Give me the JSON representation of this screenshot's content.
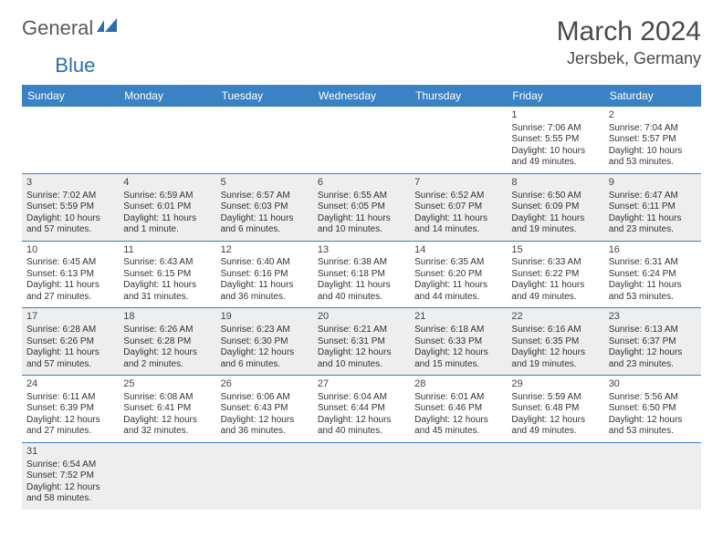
{
  "logo": {
    "word1": "General",
    "word2": "Blue",
    "word1_color": "#5a5a5a",
    "word2_color": "#2d6fb0",
    "icon_color": "#2d6fb0"
  },
  "title": "March 2024",
  "location": "Jersbek, Germany",
  "header_bg": "#3a82c4",
  "header_fg": "#ffffff",
  "row_alt_bg": "#eeeeee",
  "row_bg": "#ffffff",
  "border_color": "#3a82c4",
  "text_color": "#333333",
  "day_headers": [
    "Sunday",
    "Monday",
    "Tuesday",
    "Wednesday",
    "Thursday",
    "Friday",
    "Saturday"
  ],
  "weeks": [
    [
      null,
      null,
      null,
      null,
      null,
      {
        "n": "1",
        "sr": "Sunrise: 7:06 AM",
        "ss": "Sunset: 5:55 PM",
        "dl1": "Daylight: 10 hours",
        "dl2": "and 49 minutes."
      },
      {
        "n": "2",
        "sr": "Sunrise: 7:04 AM",
        "ss": "Sunset: 5:57 PM",
        "dl1": "Daylight: 10 hours",
        "dl2": "and 53 minutes."
      }
    ],
    [
      {
        "n": "3",
        "sr": "Sunrise: 7:02 AM",
        "ss": "Sunset: 5:59 PM",
        "dl1": "Daylight: 10 hours",
        "dl2": "and 57 minutes."
      },
      {
        "n": "4",
        "sr": "Sunrise: 6:59 AM",
        "ss": "Sunset: 6:01 PM",
        "dl1": "Daylight: 11 hours",
        "dl2": "and 1 minute."
      },
      {
        "n": "5",
        "sr": "Sunrise: 6:57 AM",
        "ss": "Sunset: 6:03 PM",
        "dl1": "Daylight: 11 hours",
        "dl2": "and 6 minutes."
      },
      {
        "n": "6",
        "sr": "Sunrise: 6:55 AM",
        "ss": "Sunset: 6:05 PM",
        "dl1": "Daylight: 11 hours",
        "dl2": "and 10 minutes."
      },
      {
        "n": "7",
        "sr": "Sunrise: 6:52 AM",
        "ss": "Sunset: 6:07 PM",
        "dl1": "Daylight: 11 hours",
        "dl2": "and 14 minutes."
      },
      {
        "n": "8",
        "sr": "Sunrise: 6:50 AM",
        "ss": "Sunset: 6:09 PM",
        "dl1": "Daylight: 11 hours",
        "dl2": "and 19 minutes."
      },
      {
        "n": "9",
        "sr": "Sunrise: 6:47 AM",
        "ss": "Sunset: 6:11 PM",
        "dl1": "Daylight: 11 hours",
        "dl2": "and 23 minutes."
      }
    ],
    [
      {
        "n": "10",
        "sr": "Sunrise: 6:45 AM",
        "ss": "Sunset: 6:13 PM",
        "dl1": "Daylight: 11 hours",
        "dl2": "and 27 minutes."
      },
      {
        "n": "11",
        "sr": "Sunrise: 6:43 AM",
        "ss": "Sunset: 6:15 PM",
        "dl1": "Daylight: 11 hours",
        "dl2": "and 31 minutes."
      },
      {
        "n": "12",
        "sr": "Sunrise: 6:40 AM",
        "ss": "Sunset: 6:16 PM",
        "dl1": "Daylight: 11 hours",
        "dl2": "and 36 minutes."
      },
      {
        "n": "13",
        "sr": "Sunrise: 6:38 AM",
        "ss": "Sunset: 6:18 PM",
        "dl1": "Daylight: 11 hours",
        "dl2": "and 40 minutes."
      },
      {
        "n": "14",
        "sr": "Sunrise: 6:35 AM",
        "ss": "Sunset: 6:20 PM",
        "dl1": "Daylight: 11 hours",
        "dl2": "and 44 minutes."
      },
      {
        "n": "15",
        "sr": "Sunrise: 6:33 AM",
        "ss": "Sunset: 6:22 PM",
        "dl1": "Daylight: 11 hours",
        "dl2": "and 49 minutes."
      },
      {
        "n": "16",
        "sr": "Sunrise: 6:31 AM",
        "ss": "Sunset: 6:24 PM",
        "dl1": "Daylight: 11 hours",
        "dl2": "and 53 minutes."
      }
    ],
    [
      {
        "n": "17",
        "sr": "Sunrise: 6:28 AM",
        "ss": "Sunset: 6:26 PM",
        "dl1": "Daylight: 11 hours",
        "dl2": "and 57 minutes."
      },
      {
        "n": "18",
        "sr": "Sunrise: 6:26 AM",
        "ss": "Sunset: 6:28 PM",
        "dl1": "Daylight: 12 hours",
        "dl2": "and 2 minutes."
      },
      {
        "n": "19",
        "sr": "Sunrise: 6:23 AM",
        "ss": "Sunset: 6:30 PM",
        "dl1": "Daylight: 12 hours",
        "dl2": "and 6 minutes."
      },
      {
        "n": "20",
        "sr": "Sunrise: 6:21 AM",
        "ss": "Sunset: 6:31 PM",
        "dl1": "Daylight: 12 hours",
        "dl2": "and 10 minutes."
      },
      {
        "n": "21",
        "sr": "Sunrise: 6:18 AM",
        "ss": "Sunset: 6:33 PM",
        "dl1": "Daylight: 12 hours",
        "dl2": "and 15 minutes."
      },
      {
        "n": "22",
        "sr": "Sunrise: 6:16 AM",
        "ss": "Sunset: 6:35 PM",
        "dl1": "Daylight: 12 hours",
        "dl2": "and 19 minutes."
      },
      {
        "n": "23",
        "sr": "Sunrise: 6:13 AM",
        "ss": "Sunset: 6:37 PM",
        "dl1": "Daylight: 12 hours",
        "dl2": "and 23 minutes."
      }
    ],
    [
      {
        "n": "24",
        "sr": "Sunrise: 6:11 AM",
        "ss": "Sunset: 6:39 PM",
        "dl1": "Daylight: 12 hours",
        "dl2": "and 27 minutes."
      },
      {
        "n": "25",
        "sr": "Sunrise: 6:08 AM",
        "ss": "Sunset: 6:41 PM",
        "dl1": "Daylight: 12 hours",
        "dl2": "and 32 minutes."
      },
      {
        "n": "26",
        "sr": "Sunrise: 6:06 AM",
        "ss": "Sunset: 6:43 PM",
        "dl1": "Daylight: 12 hours",
        "dl2": "and 36 minutes."
      },
      {
        "n": "27",
        "sr": "Sunrise: 6:04 AM",
        "ss": "Sunset: 6:44 PM",
        "dl1": "Daylight: 12 hours",
        "dl2": "and 40 minutes."
      },
      {
        "n": "28",
        "sr": "Sunrise: 6:01 AM",
        "ss": "Sunset: 6:46 PM",
        "dl1": "Daylight: 12 hours",
        "dl2": "and 45 minutes."
      },
      {
        "n": "29",
        "sr": "Sunrise: 5:59 AM",
        "ss": "Sunset: 6:48 PM",
        "dl1": "Daylight: 12 hours",
        "dl2": "and 49 minutes."
      },
      {
        "n": "30",
        "sr": "Sunrise: 5:56 AM",
        "ss": "Sunset: 6:50 PM",
        "dl1": "Daylight: 12 hours",
        "dl2": "and 53 minutes."
      }
    ],
    [
      {
        "n": "31",
        "sr": "Sunrise: 6:54 AM",
        "ss": "Sunset: 7:52 PM",
        "dl1": "Daylight: 12 hours",
        "dl2": "and 58 minutes."
      },
      null,
      null,
      null,
      null,
      null,
      null
    ]
  ]
}
